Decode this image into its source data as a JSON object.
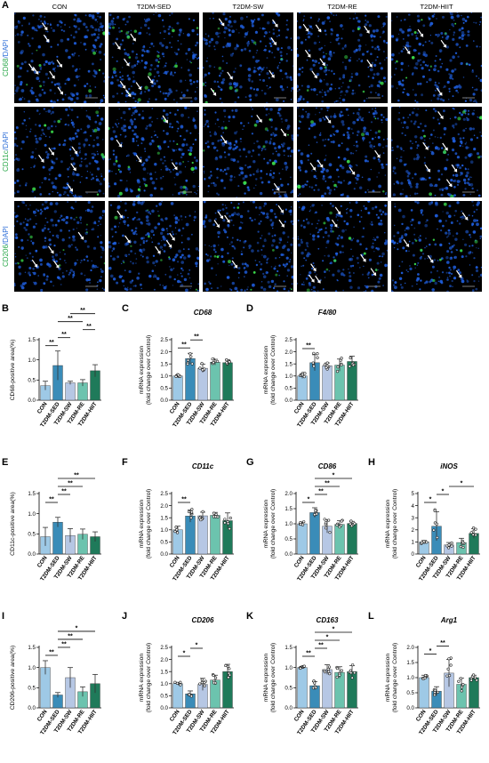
{
  "figure": {
    "micrograph": {
      "letter": "A",
      "columns": [
        "CON",
        "T2DM-SED",
        "T2DM-SW",
        "T2DM-RE",
        "T2DM-HIIT"
      ],
      "rows": [
        {
          "marker": "CD68",
          "stain": "/DAPI"
        },
        {
          "marker": "CD11c",
          "stain": "/DAPI"
        },
        {
          "marker": "CD206",
          "stain": "/DAPI"
        }
      ],
      "colors": {
        "nuclei": "#1f5fe0",
        "marker": "#39d64a",
        "arrow": "#ffffff",
        "background": "#000000"
      }
    },
    "bar_colors": [
      "#9ec9e6",
      "#3a8cb8",
      "#b6c7e4",
      "#6cc3ae",
      "#1f7a5a"
    ],
    "errorbar_color": "#333333",
    "point_color": "#ffffff",
    "point_stroke": "#222222"
  },
  "chart_data": [
    {
      "id": "B",
      "letter": "B",
      "type": "bar",
      "title": "",
      "ylabel": "CD68-positive area(%)",
      "ylim": [
        0,
        1.5
      ],
      "yticks": [
        "0.0",
        "0.5",
        "1.0",
        "1.5"
      ],
      "categories": [
        "CON",
        "T2DM-SED",
        "T2DM-SW",
        "T2DM-RE",
        "T2DM-HIIT"
      ],
      "values": [
        0.36,
        0.86,
        0.43,
        0.43,
        0.73
      ],
      "errors": [
        0.11,
        0.36,
        0.04,
        0.08,
        0.15
      ],
      "show_points": false,
      "brackets": [
        [
          0,
          1,
          "**"
        ],
        [
          1,
          2,
          "**"
        ],
        [
          1,
          3,
          "**"
        ],
        [
          2,
          4,
          "**"
        ],
        [
          3,
          4,
          "**"
        ]
      ]
    },
    {
      "id": "C",
      "letter": "C",
      "type": "bar",
      "title": "CD68",
      "ylabel": "mRNA expression\n(fold change over Control)",
      "ylim": [
        0,
        2.5
      ],
      "yticks": [
        "0.0",
        "0.5",
        "1.0",
        "1.5",
        "2.0",
        "2.5"
      ],
      "categories": [
        "CON",
        "T2DM-SED",
        "T2DM-SW",
        "T2DM-RE",
        "T2DM-HIIT"
      ],
      "values": [
        1.0,
        1.72,
        1.32,
        1.57,
        1.55
      ],
      "errors": [
        0.05,
        0.22,
        0.17,
        0.12,
        0.13
      ],
      "show_points": true,
      "brackets": [
        [
          0,
          1,
          "**"
        ],
        [
          1,
          2,
          "**"
        ]
      ]
    },
    {
      "id": "D",
      "letter": "D",
      "type": "bar",
      "title": "F4/80",
      "ylabel": "mRNA expression\n(fold change over Control)",
      "ylim": [
        0,
        2.5
      ],
      "yticks": [
        "0.0",
        "0.5",
        "1.0",
        "1.5",
        "2.0",
        "2.5"
      ],
      "categories": [
        "CON",
        "T2DM-SED",
        "T2DM-SW",
        "T2DM-RE",
        "T2DM-HIIT"
      ],
      "values": [
        1.0,
        1.55,
        1.42,
        1.45,
        1.6
      ],
      "errors": [
        0.1,
        0.33,
        0.12,
        0.25,
        0.22
      ],
      "show_points": true,
      "brackets": [
        [
          0,
          1,
          "**"
        ]
      ]
    },
    {
      "id": "E",
      "letter": "E",
      "type": "bar",
      "title": "",
      "ylabel": "CD11c-positive area(%)",
      "ylim": [
        0,
        1.5
      ],
      "yticks": [
        "0.0",
        "0.5",
        "1.0",
        "1.5"
      ],
      "categories": [
        "CON",
        "T2DM-SED",
        "T2DM-SW",
        "T2DM-RE",
        "T2DM-HIIT"
      ],
      "values": [
        0.43,
        0.79,
        0.46,
        0.49,
        0.43
      ],
      "errors": [
        0.23,
        0.12,
        0.17,
        0.13,
        0.12
      ],
      "show_points": false,
      "brackets": [
        [
          0,
          1,
          "**"
        ],
        [
          1,
          2,
          "**"
        ],
        [
          1,
          3,
          "**"
        ],
        [
          1,
          4,
          "**"
        ]
      ]
    },
    {
      "id": "F",
      "letter": "F",
      "type": "bar",
      "title": "CD11c",
      "ylabel": "mRNA expression\n(fold change over Control)",
      "ylim": [
        0,
        2.5
      ],
      "yticks": [
        "0.0",
        "0.5",
        "1.0",
        "1.5",
        "2.0",
        "2.5"
      ],
      "categories": [
        "CON",
        "T2DM-SED",
        "T2DM-SW",
        "T2DM-RE",
        "T2DM-HIIT"
      ],
      "values": [
        1.0,
        1.57,
        1.58,
        1.6,
        1.38
      ],
      "errors": [
        0.15,
        0.25,
        0.15,
        0.12,
        0.32
      ],
      "show_points": true,
      "brackets": [
        [
          0,
          1,
          "**"
        ]
      ]
    },
    {
      "id": "G",
      "letter": "G",
      "type": "bar",
      "title": "CD86",
      "ylabel": "mRNA expression\n(fold change over Control)",
      "ylim": [
        0,
        2.0
      ],
      "yticks": [
        "0.0",
        "0.5",
        "1.0",
        "1.5",
        "2.0"
      ],
      "categories": [
        "CON",
        "T2DM-SED",
        "T2DM-SW",
        "T2DM-RE",
        "T2DM-HIIT"
      ],
      "values": [
        1.0,
        1.37,
        0.92,
        0.98,
        1.01
      ],
      "errors": [
        0.06,
        0.16,
        0.22,
        0.12,
        0.07
      ],
      "show_points": true,
      "brackets": [
        [
          0,
          1,
          "*"
        ],
        [
          1,
          2,
          "**"
        ],
        [
          1,
          3,
          "**"
        ],
        [
          1,
          4,
          "*"
        ]
      ]
    },
    {
      "id": "H",
      "letter": "H",
      "type": "bar",
      "title": "iNOS",
      "ylabel": "mRNA expression\n(fold change over Control)",
      "ylim": [
        0,
        5
      ],
      "yticks": [
        "0",
        "1",
        "2",
        "3",
        "4",
        "5"
      ],
      "categories": [
        "CON",
        "T2DM-SED",
        "T2DM-SW",
        "T2DM-RE",
        "T2DM-HIIT"
      ],
      "values": [
        1.0,
        2.3,
        0.75,
        0.95,
        1.7
      ],
      "errors": [
        0.12,
        1.2,
        0.2,
        0.35,
        0.4
      ],
      "show_points": true,
      "brackets": [
        [
          0,
          1,
          "*"
        ],
        [
          1,
          2,
          "*"
        ],
        [
          2,
          4,
          "*"
        ]
      ]
    },
    {
      "id": "I",
      "letter": "I",
      "type": "bar",
      "title": "",
      "ylabel": "CD206-positive area(%)",
      "ylim": [
        0,
        1.5
      ],
      "yticks": [
        "0.0",
        "0.5",
        "1.0",
        "1.5"
      ],
      "categories": [
        "CON",
        "T2DM-SED",
        "T2DM-SW",
        "T2DM-RE",
        "T2DM-HIIT"
      ],
      "values": [
        1.0,
        0.32,
        0.75,
        0.4,
        0.6
      ],
      "errors": [
        0.17,
        0.06,
        0.25,
        0.12,
        0.23
      ],
      "show_points": false,
      "brackets": [
        [
          0,
          1,
          "**"
        ],
        [
          1,
          2,
          "**"
        ],
        [
          1,
          3,
          "**"
        ],
        [
          1,
          4,
          "*"
        ]
      ]
    },
    {
      "id": "J",
      "letter": "J",
      "type": "bar",
      "title": "CD206",
      "ylabel": "mRNA expression\n(fold change over Control)",
      "ylim": [
        0,
        2.5
      ],
      "yticks": [
        "0.0",
        "0.5",
        "1.0",
        "1.5",
        "2.0",
        "2.5"
      ],
      "categories": [
        "CON",
        "T2DM-SED",
        "T2DM-SW",
        "T2DM-RE",
        "T2DM-HIIT"
      ],
      "values": [
        1.0,
        0.58,
        0.97,
        1.15,
        1.5
      ],
      "errors": [
        0.05,
        0.12,
        0.25,
        0.2,
        0.3
      ],
      "show_points": true,
      "brackets": [
        [
          0,
          1,
          "*"
        ],
        [
          1,
          2,
          "*"
        ]
      ]
    },
    {
      "id": "K",
      "letter": "K",
      "type": "bar",
      "title": "CD163",
      "ylabel": "mRNA expression\n(fold change over Control)",
      "ylim": [
        0,
        1.5
      ],
      "yticks": [
        "0.0",
        "0.5",
        "1.0",
        "1.5"
      ],
      "categories": [
        "CON",
        "T2DM-SED",
        "T2DM-SW",
        "T2DM-RE",
        "T2DM-HIIT"
      ],
      "values": [
        1.0,
        0.55,
        0.95,
        0.88,
        0.9
      ],
      "errors": [
        0.03,
        0.1,
        0.12,
        0.14,
        0.15
      ],
      "show_points": true,
      "brackets": [
        [
          0,
          1,
          "**"
        ],
        [
          1,
          2,
          "**"
        ],
        [
          1,
          3,
          "*"
        ],
        [
          1,
          4,
          "*"
        ]
      ]
    },
    {
      "id": "L",
      "letter": "L",
      "type": "bar",
      "title": "Arg1",
      "ylabel": "mRNA expression\n(fold change over Control)",
      "ylim": [
        0,
        2.0
      ],
      "yticks": [
        "0.0",
        "0.5",
        "1.0",
        "1.5",
        "2.0"
      ],
      "categories": [
        "CON",
        "T2DM-SED",
        "T2DM-SW",
        "T2DM-RE",
        "T2DM-HIIT"
      ],
      "values": [
        1.0,
        0.55,
        1.15,
        0.78,
        1.0
      ],
      "errors": [
        0.08,
        0.15,
        0.45,
        0.2,
        0.08
      ],
      "show_points": true,
      "brackets": [
        [
          0,
          1,
          "*"
        ],
        [
          1,
          2,
          "**"
        ]
      ]
    }
  ]
}
